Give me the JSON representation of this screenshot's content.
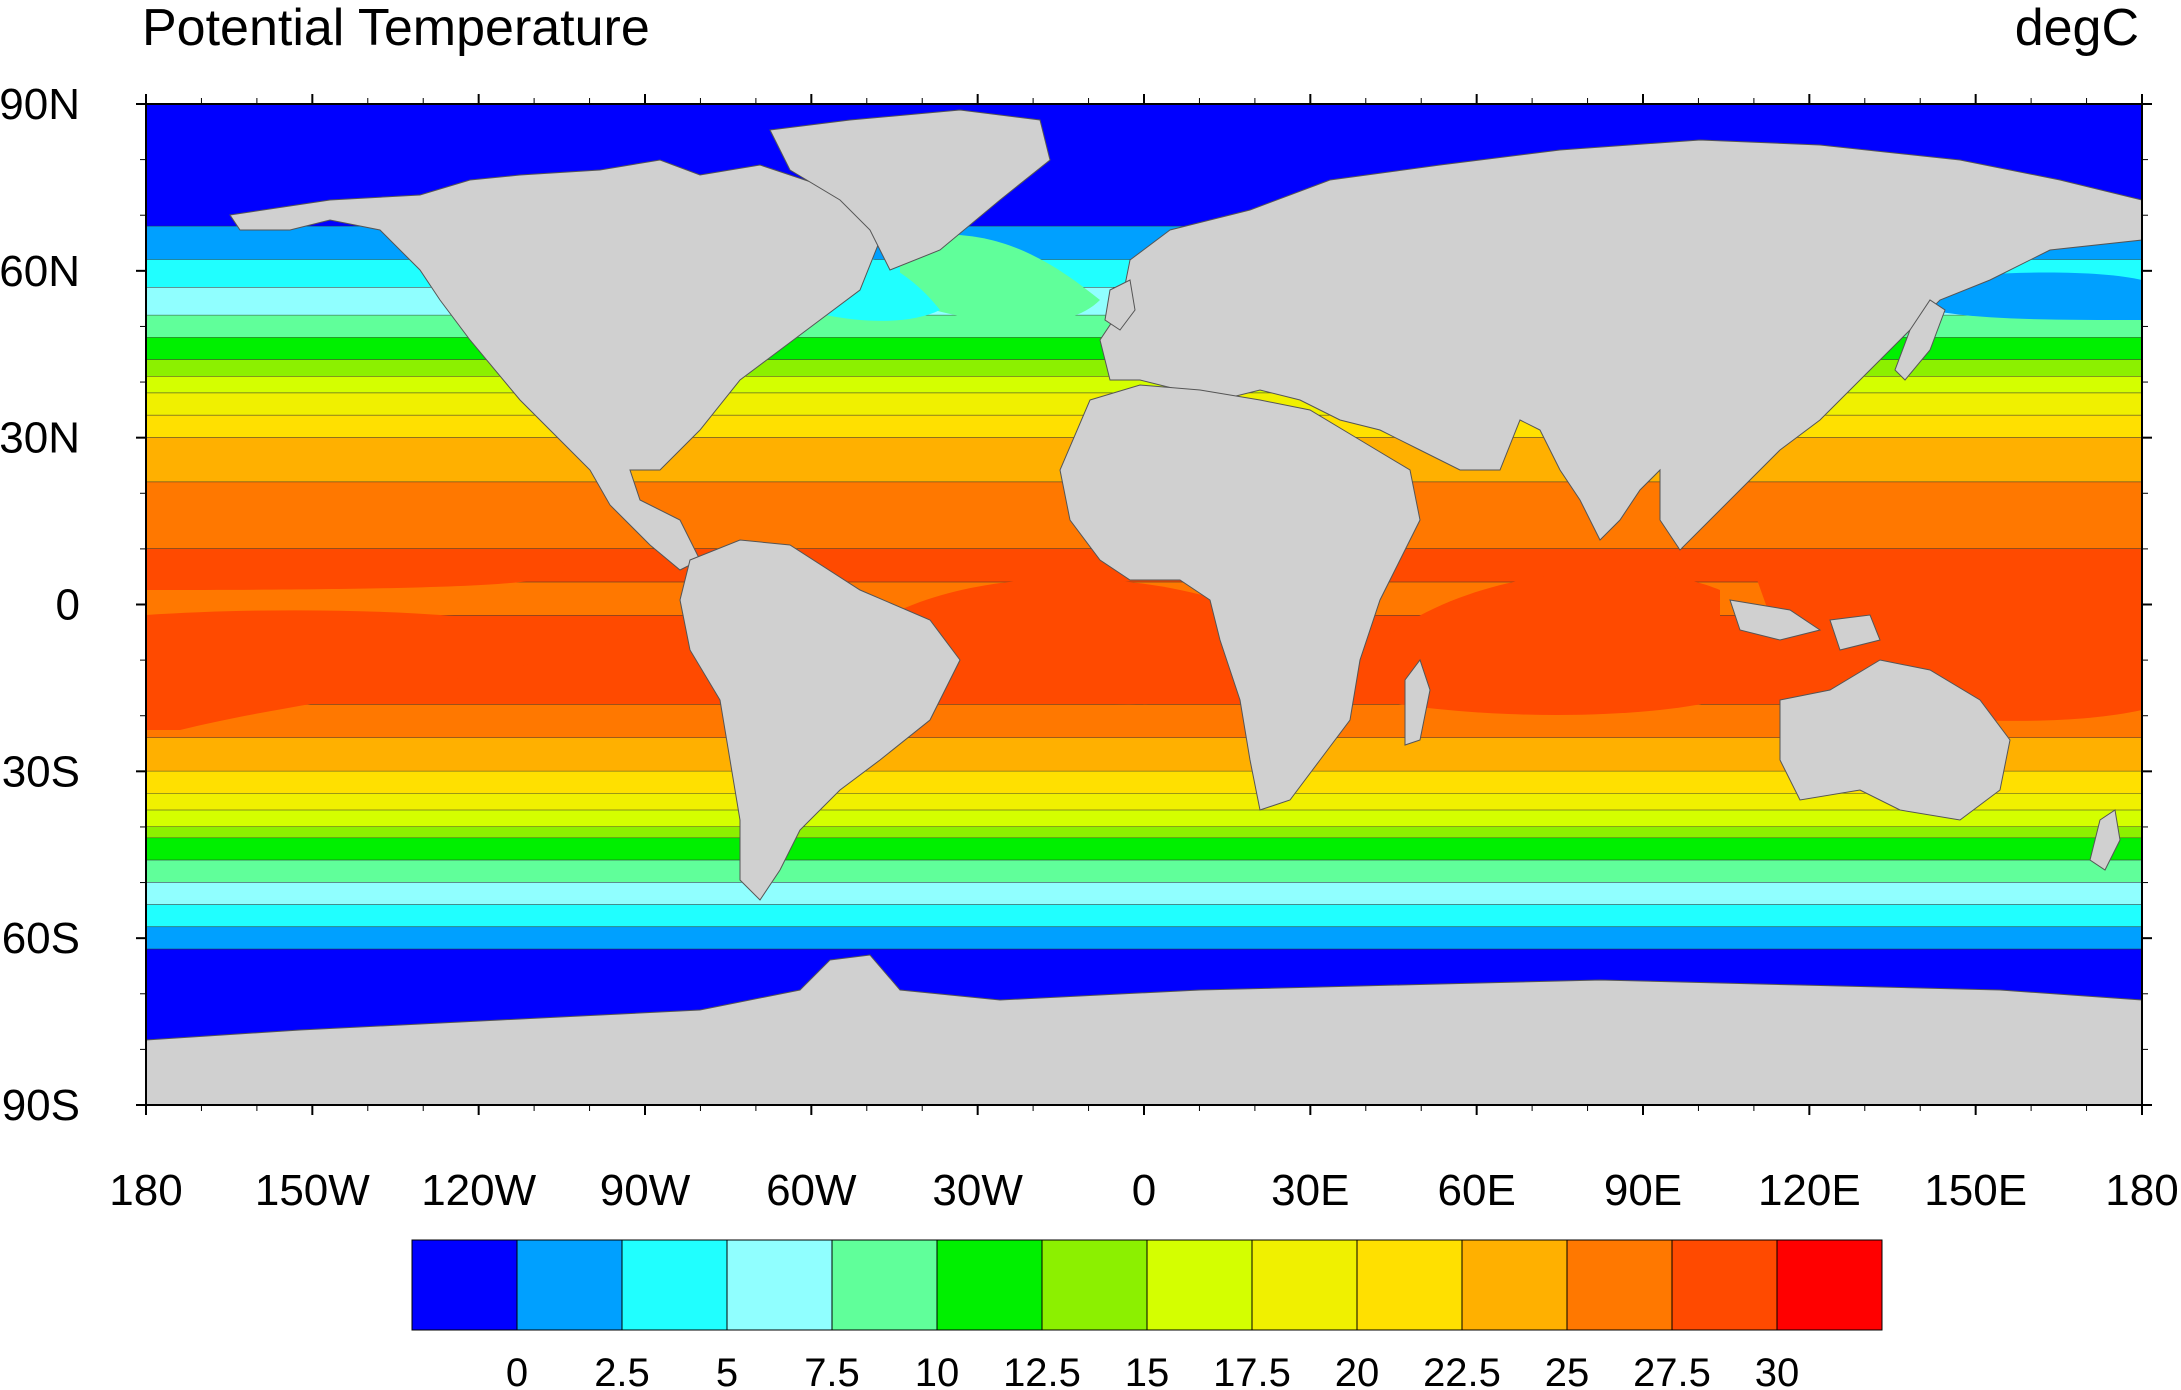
{
  "title": "Potential Temperature",
  "units": "degC",
  "map": {
    "projection": "cylindrical equidistant",
    "lon_range": [
      -180,
      180
    ],
    "lat_range": [
      -90,
      90
    ],
    "land_color": "#d0d0d0",
    "lon_ticks": [
      {
        "lon": -180,
        "label": "180"
      },
      {
        "lon": -150,
        "label": "150W"
      },
      {
        "lon": -120,
        "label": "120W"
      },
      {
        "lon": -90,
        "label": "90W"
      },
      {
        "lon": -60,
        "label": "60W"
      },
      {
        "lon": -30,
        "label": "30W"
      },
      {
        "lon": 0,
        "label": "0"
      },
      {
        "lon": 30,
        "label": "30E"
      },
      {
        "lon": 60,
        "label": "60E"
      },
      {
        "lon": 90,
        "label": "90E"
      },
      {
        "lon": 120,
        "label": "120E"
      },
      {
        "lon": 150,
        "label": "150E"
      },
      {
        "lon": 180,
        "label": "180"
      }
    ],
    "lat_ticks": [
      {
        "lat": 90,
        "label": "90N"
      },
      {
        "lat": 60,
        "label": "60N"
      },
      {
        "lat": 30,
        "label": "30N"
      },
      {
        "lat": 0,
        "label": "0"
      },
      {
        "lat": -30,
        "label": "30S"
      },
      {
        "lat": -60,
        "label": "60S"
      },
      {
        "lat": -90,
        "label": "90S"
      }
    ]
  },
  "colorbar": {
    "colors": [
      "#0000ff",
      "#00a0ff",
      "#20ffff",
      "#90ffff",
      "#60ff9a",
      "#00f000",
      "#8cf000",
      "#d4ff00",
      "#f0f000",
      "#ffe000",
      "#ffb000",
      "#ff7800",
      "#ff4a00",
      "#ff0000"
    ],
    "labels": [
      "0",
      "2.5",
      "5",
      "7.5",
      "10",
      "12.5",
      "15",
      "17.5",
      "20",
      "22.5",
      "25",
      "27.5",
      "30"
    ]
  }
}
